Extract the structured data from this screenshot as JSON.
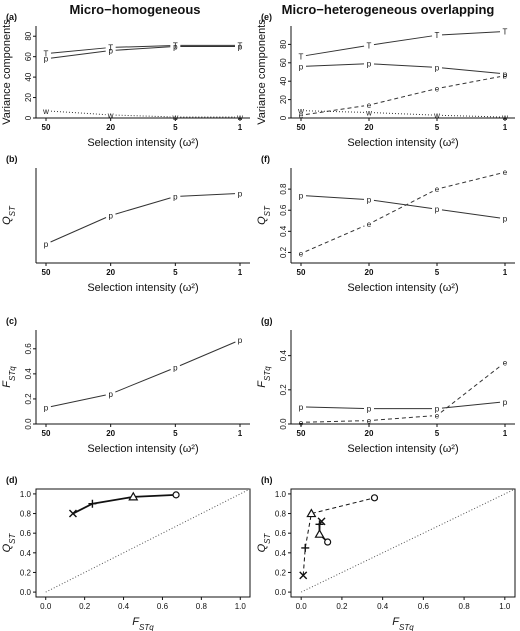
{
  "titles": {
    "left": "Micro−homogeneous",
    "right": "Micro−heterogeneous overlapping"
  },
  "chart_data": [
    {
      "id": "a",
      "panel_label": "(a)",
      "type": "line",
      "categories": [
        "50",
        "20",
        "5",
        "1"
      ],
      "xlabel": "Selection intensity (ω²)",
      "ylabel": "Variance components",
      "ylim": [
        0,
        90
      ],
      "yticks": [
        "0",
        "20",
        "40",
        "60",
        "80"
      ],
      "series": [
        {
          "marker": "T",
          "values": [
            63,
            69,
            71,
            71
          ],
          "style": "solid"
        },
        {
          "marker": "p",
          "values": [
            58,
            66,
            70,
            70
          ],
          "style": "solid"
        },
        {
          "marker": "w",
          "values": [
            7,
            3,
            1,
            1
          ],
          "style": "dotted"
        }
      ]
    },
    {
      "id": "b",
      "panel_label": "(b)",
      "type": "line",
      "categories": [
        "50",
        "20",
        "5",
        "1"
      ],
      "xlabel": "Selection intensity (ω²)",
      "ylabel": "Q_ST",
      "ylim": [
        0.75,
        1.05
      ],
      "yticks": [],
      "series": [
        {
          "marker": "p",
          "values": [
            0.81,
            0.9,
            0.96,
            0.97
          ],
          "style": "solid"
        }
      ]
    },
    {
      "id": "c",
      "panel_label": "(c)",
      "type": "line",
      "categories": [
        "50",
        "20",
        "5",
        "1"
      ],
      "xlabel": "Selection intensity (ω²)",
      "ylabel": "F_STq",
      "ylim": [
        0,
        0.75
      ],
      "yticks": [
        "0.0",
        "0.2",
        "0.4",
        "0.6"
      ],
      "series": [
        {
          "marker": "p",
          "values": [
            0.13,
            0.24,
            0.45,
            0.67
          ],
          "style": "solid"
        }
      ]
    },
    {
      "id": "d",
      "panel_label": "(d)",
      "type": "scatter",
      "xlabel": "F_STq",
      "ylabel": "Q_ST",
      "xlim": [
        -0.05,
        1.05
      ],
      "ylim": [
        -0.05,
        1.05
      ],
      "xticks": [
        "0.0",
        "0.2",
        "0.4",
        "0.6",
        "0.8",
        "1.0"
      ],
      "yticks": [
        "0.0",
        "0.2",
        "0.4",
        "0.6",
        "0.8",
        "1.0"
      ],
      "diagonal": true,
      "series": [
        {
          "style": "solid-bold",
          "points": [
            {
              "x": 0.14,
              "y": 0.8,
              "marker": "x"
            },
            {
              "x": 0.24,
              "y": 0.9,
              "marker": "+"
            },
            {
              "x": 0.45,
              "y": 0.97,
              "marker": "triangle"
            },
            {
              "x": 0.67,
              "y": 0.99,
              "marker": "circle"
            }
          ]
        }
      ]
    },
    {
      "id": "e",
      "panel_label": "(e)",
      "type": "line",
      "categories": [
        "50",
        "20",
        "5",
        "1"
      ],
      "xlabel": "Selection intensity (ω²)",
      "ylabel": "Variance components",
      "ylim": [
        0,
        100
      ],
      "yticks": [
        "0",
        "20",
        "40",
        "60",
        "80"
      ],
      "series": [
        {
          "marker": "T",
          "values": [
            67,
            79,
            90,
            94
          ],
          "style": "solid"
        },
        {
          "marker": "p",
          "values": [
            56,
            59,
            55,
            48
          ],
          "style": "solid"
        },
        {
          "marker": "e",
          "values": [
            3,
            14,
            32,
            46
          ],
          "style": "dashed"
        },
        {
          "marker": "w",
          "values": [
            8,
            6,
            3,
            1
          ],
          "style": "dotted"
        }
      ]
    },
    {
      "id": "f",
      "panel_label": "(f)",
      "type": "line",
      "categories": [
        "50",
        "20",
        "5",
        "1"
      ],
      "xlabel": "Selection intensity (ω²)",
      "ylabel": "Q_ST",
      "ylim": [
        0.1,
        1.0
      ],
      "yticks": [
        "0.2",
        "0.4",
        "0.6",
        "0.8"
      ],
      "series": [
        {
          "marker": "p",
          "values": [
            0.74,
            0.7,
            0.61,
            0.52
          ],
          "style": "solid"
        },
        {
          "marker": "e",
          "values": [
            0.19,
            0.47,
            0.8,
            0.96
          ],
          "style": "dashed"
        }
      ]
    },
    {
      "id": "g",
      "panel_label": "(g)",
      "type": "line",
      "categories": [
        "50",
        "20",
        "5",
        "1"
      ],
      "xlabel": "Selection intensity (ω²)",
      "ylabel": "F_STq",
      "ylim": [
        0,
        0.55
      ],
      "yticks": [
        "0.0",
        "0.2",
        "0.4"
      ],
      "series": [
        {
          "marker": "p",
          "values": [
            0.1,
            0.09,
            0.09,
            0.13
          ],
          "style": "solid"
        },
        {
          "marker": "e",
          "values": [
            0.01,
            0.02,
            0.05,
            0.36
          ],
          "style": "dashed"
        }
      ]
    },
    {
      "id": "h",
      "panel_label": "(h)",
      "type": "scatter",
      "xlabel": "F_STq",
      "ylabel": "Q_ST",
      "xlim": [
        -0.05,
        1.05
      ],
      "ylim": [
        -0.05,
        1.05
      ],
      "xticks": [
        "0.0",
        "0.2",
        "0.4",
        "0.6",
        "0.8",
        "1.0"
      ],
      "yticks": [
        "0.0",
        "0.2",
        "0.4",
        "0.6",
        "0.8",
        "1.0"
      ],
      "diagonal": true,
      "series": [
        {
          "style": "dashed",
          "points": [
            {
              "x": 0.01,
              "y": 0.17,
              "marker": "x"
            },
            {
              "x": 0.02,
              "y": 0.45,
              "marker": "+"
            },
            {
              "x": 0.05,
              "y": 0.8,
              "marker": "triangle"
            },
            {
              "x": 0.36,
              "y": 0.96,
              "marker": "circle"
            }
          ]
        },
        {
          "style": "solid-bold",
          "points": [
            {
              "x": 0.1,
              "y": 0.72,
              "marker": "x"
            },
            {
              "x": 0.09,
              "y": 0.69,
              "marker": "+"
            },
            {
              "x": 0.09,
              "y": 0.59,
              "marker": "triangle"
            },
            {
              "x": 0.13,
              "y": 0.51,
              "marker": "circle"
            }
          ]
        }
      ]
    }
  ]
}
